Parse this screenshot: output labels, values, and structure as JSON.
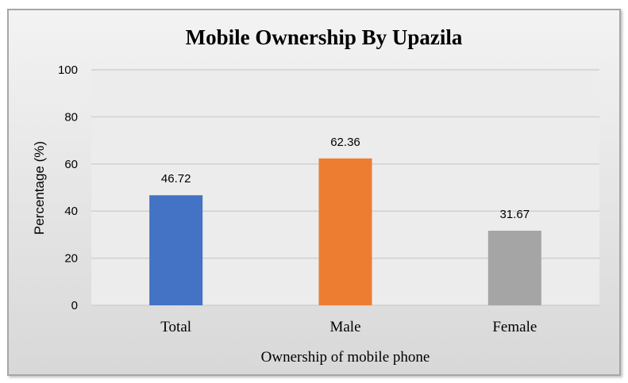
{
  "chart_data": {
    "type": "bar",
    "title": "Mobile Ownership By Upazila",
    "xlabel": "Ownership of mobile phone",
    "ylabel": "Percentage (%)",
    "categories": [
      "Total",
      "Male",
      "Female"
    ],
    "values": [
      46.72,
      62.36,
      31.67
    ],
    "value_labels": [
      "46.72",
      "62.36",
      "31.67"
    ],
    "colors": [
      "#4472c4",
      "#ed7d31",
      "#a5a5a5"
    ],
    "ylim": [
      0,
      100
    ],
    "yticks": [
      "0",
      "20",
      "40",
      "60",
      "80",
      "100"
    ],
    "grid": true,
    "legend": "none"
  }
}
